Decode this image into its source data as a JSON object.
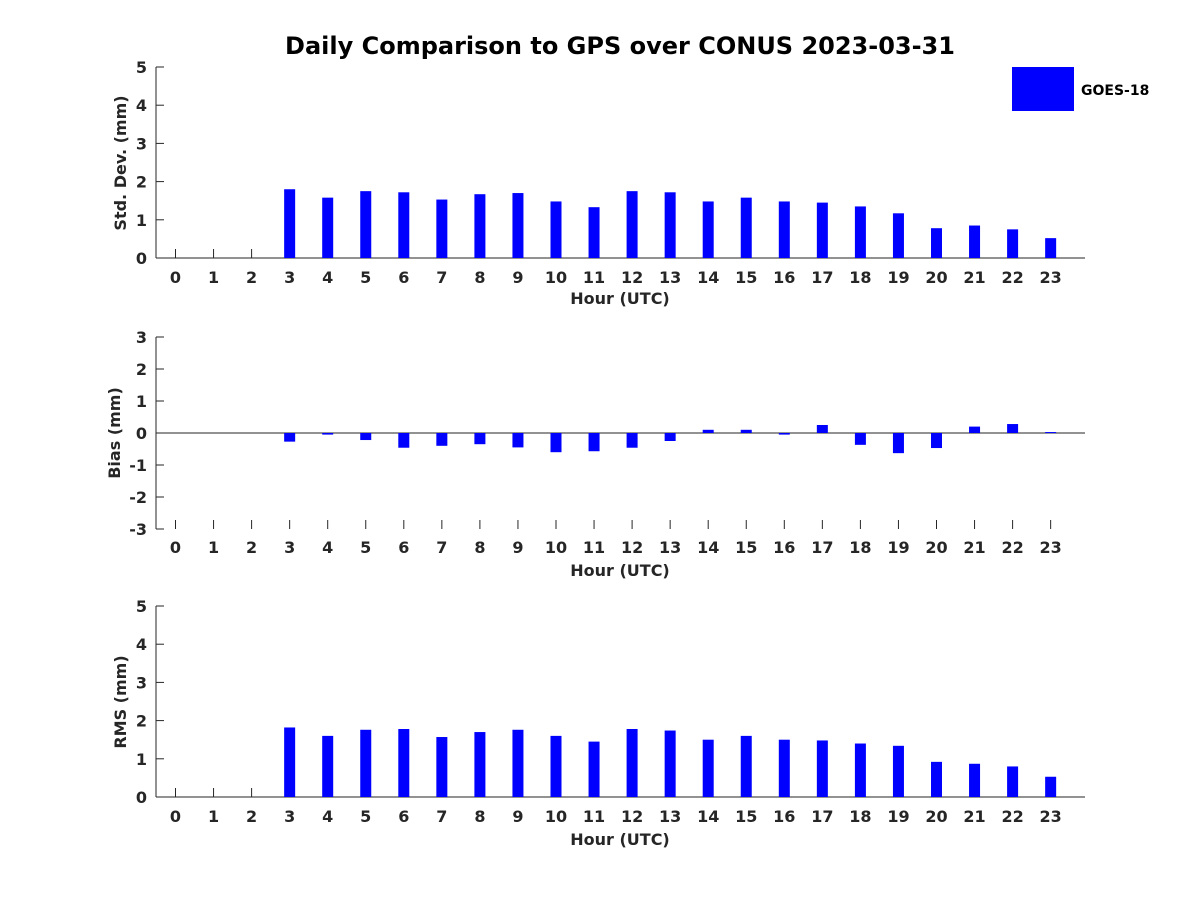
{
  "figure_title": "Daily Comparison to GPS over CONUS 2023-03-31",
  "legend": {
    "label": "GOES-18",
    "color": "#0000ff"
  },
  "chart_data": [
    {
      "type": "bar",
      "title": "Daily Comparison to GPS over CONUS 2023-03-31",
      "xlabel": "Hour (UTC)",
      "ylabel": "Std. Dev. (mm)",
      "ylim": [
        0,
        5
      ],
      "yticks": [
        "0",
        "1",
        "2",
        "3",
        "4",
        "5"
      ],
      "categories": [
        "0",
        "1",
        "2",
        "3",
        "4",
        "5",
        "6",
        "7",
        "8",
        "9",
        "10",
        "11",
        "12",
        "13",
        "14",
        "15",
        "16",
        "17",
        "18",
        "19",
        "20",
        "21",
        "22",
        "23"
      ],
      "series": [
        {
          "name": "GOES-18",
          "color": "#0000ff",
          "values": [
            null,
            null,
            null,
            1.8,
            1.58,
            1.75,
            1.72,
            1.53,
            1.67,
            1.7,
            1.48,
            1.33,
            1.75,
            1.72,
            1.48,
            1.58,
            1.48,
            1.45,
            1.35,
            1.17,
            0.78,
            0.85,
            0.75,
            0.52
          ]
        }
      ],
      "grid": false,
      "legend_position": "top-right"
    },
    {
      "type": "bar",
      "title": "",
      "xlabel": "Hour (UTC)",
      "ylabel": "Bias (mm)",
      "ylim": [
        -3,
        3
      ],
      "yticks": [
        "-3",
        "-2",
        "-1",
        "0",
        "1",
        "2",
        "3"
      ],
      "categories": [
        "0",
        "1",
        "2",
        "3",
        "4",
        "5",
        "6",
        "7",
        "8",
        "9",
        "10",
        "11",
        "12",
        "13",
        "14",
        "15",
        "16",
        "17",
        "18",
        "19",
        "20",
        "21",
        "22",
        "23"
      ],
      "series": [
        {
          "name": "GOES-18",
          "color": "#0000ff",
          "values": [
            null,
            null,
            null,
            -0.27,
            -0.05,
            -0.22,
            -0.46,
            -0.4,
            -0.35,
            -0.45,
            -0.6,
            -0.57,
            -0.46,
            -0.25,
            0.1,
            0.1,
            -0.05,
            0.25,
            -0.37,
            -0.63,
            -0.47,
            0.2,
            0.28,
            0.03
          ]
        }
      ],
      "grid": false
    },
    {
      "type": "bar",
      "title": "",
      "xlabel": "Hour (UTC)",
      "ylabel": "RMS (mm)",
      "ylim": [
        0,
        5
      ],
      "yticks": [
        "0",
        "1",
        "2",
        "3",
        "4",
        "5"
      ],
      "categories": [
        "0",
        "1",
        "2",
        "3",
        "4",
        "5",
        "6",
        "7",
        "8",
        "9",
        "10",
        "11",
        "12",
        "13",
        "14",
        "15",
        "16",
        "17",
        "18",
        "19",
        "20",
        "21",
        "22",
        "23"
      ],
      "series": [
        {
          "name": "GOES-18",
          "color": "#0000ff",
          "values": [
            null,
            null,
            null,
            1.82,
            1.6,
            1.76,
            1.78,
            1.57,
            1.7,
            1.76,
            1.6,
            1.45,
            1.78,
            1.74,
            1.5,
            1.6,
            1.5,
            1.48,
            1.4,
            1.34,
            0.92,
            0.87,
            0.8,
            0.53
          ]
        }
      ],
      "grid": false
    }
  ]
}
